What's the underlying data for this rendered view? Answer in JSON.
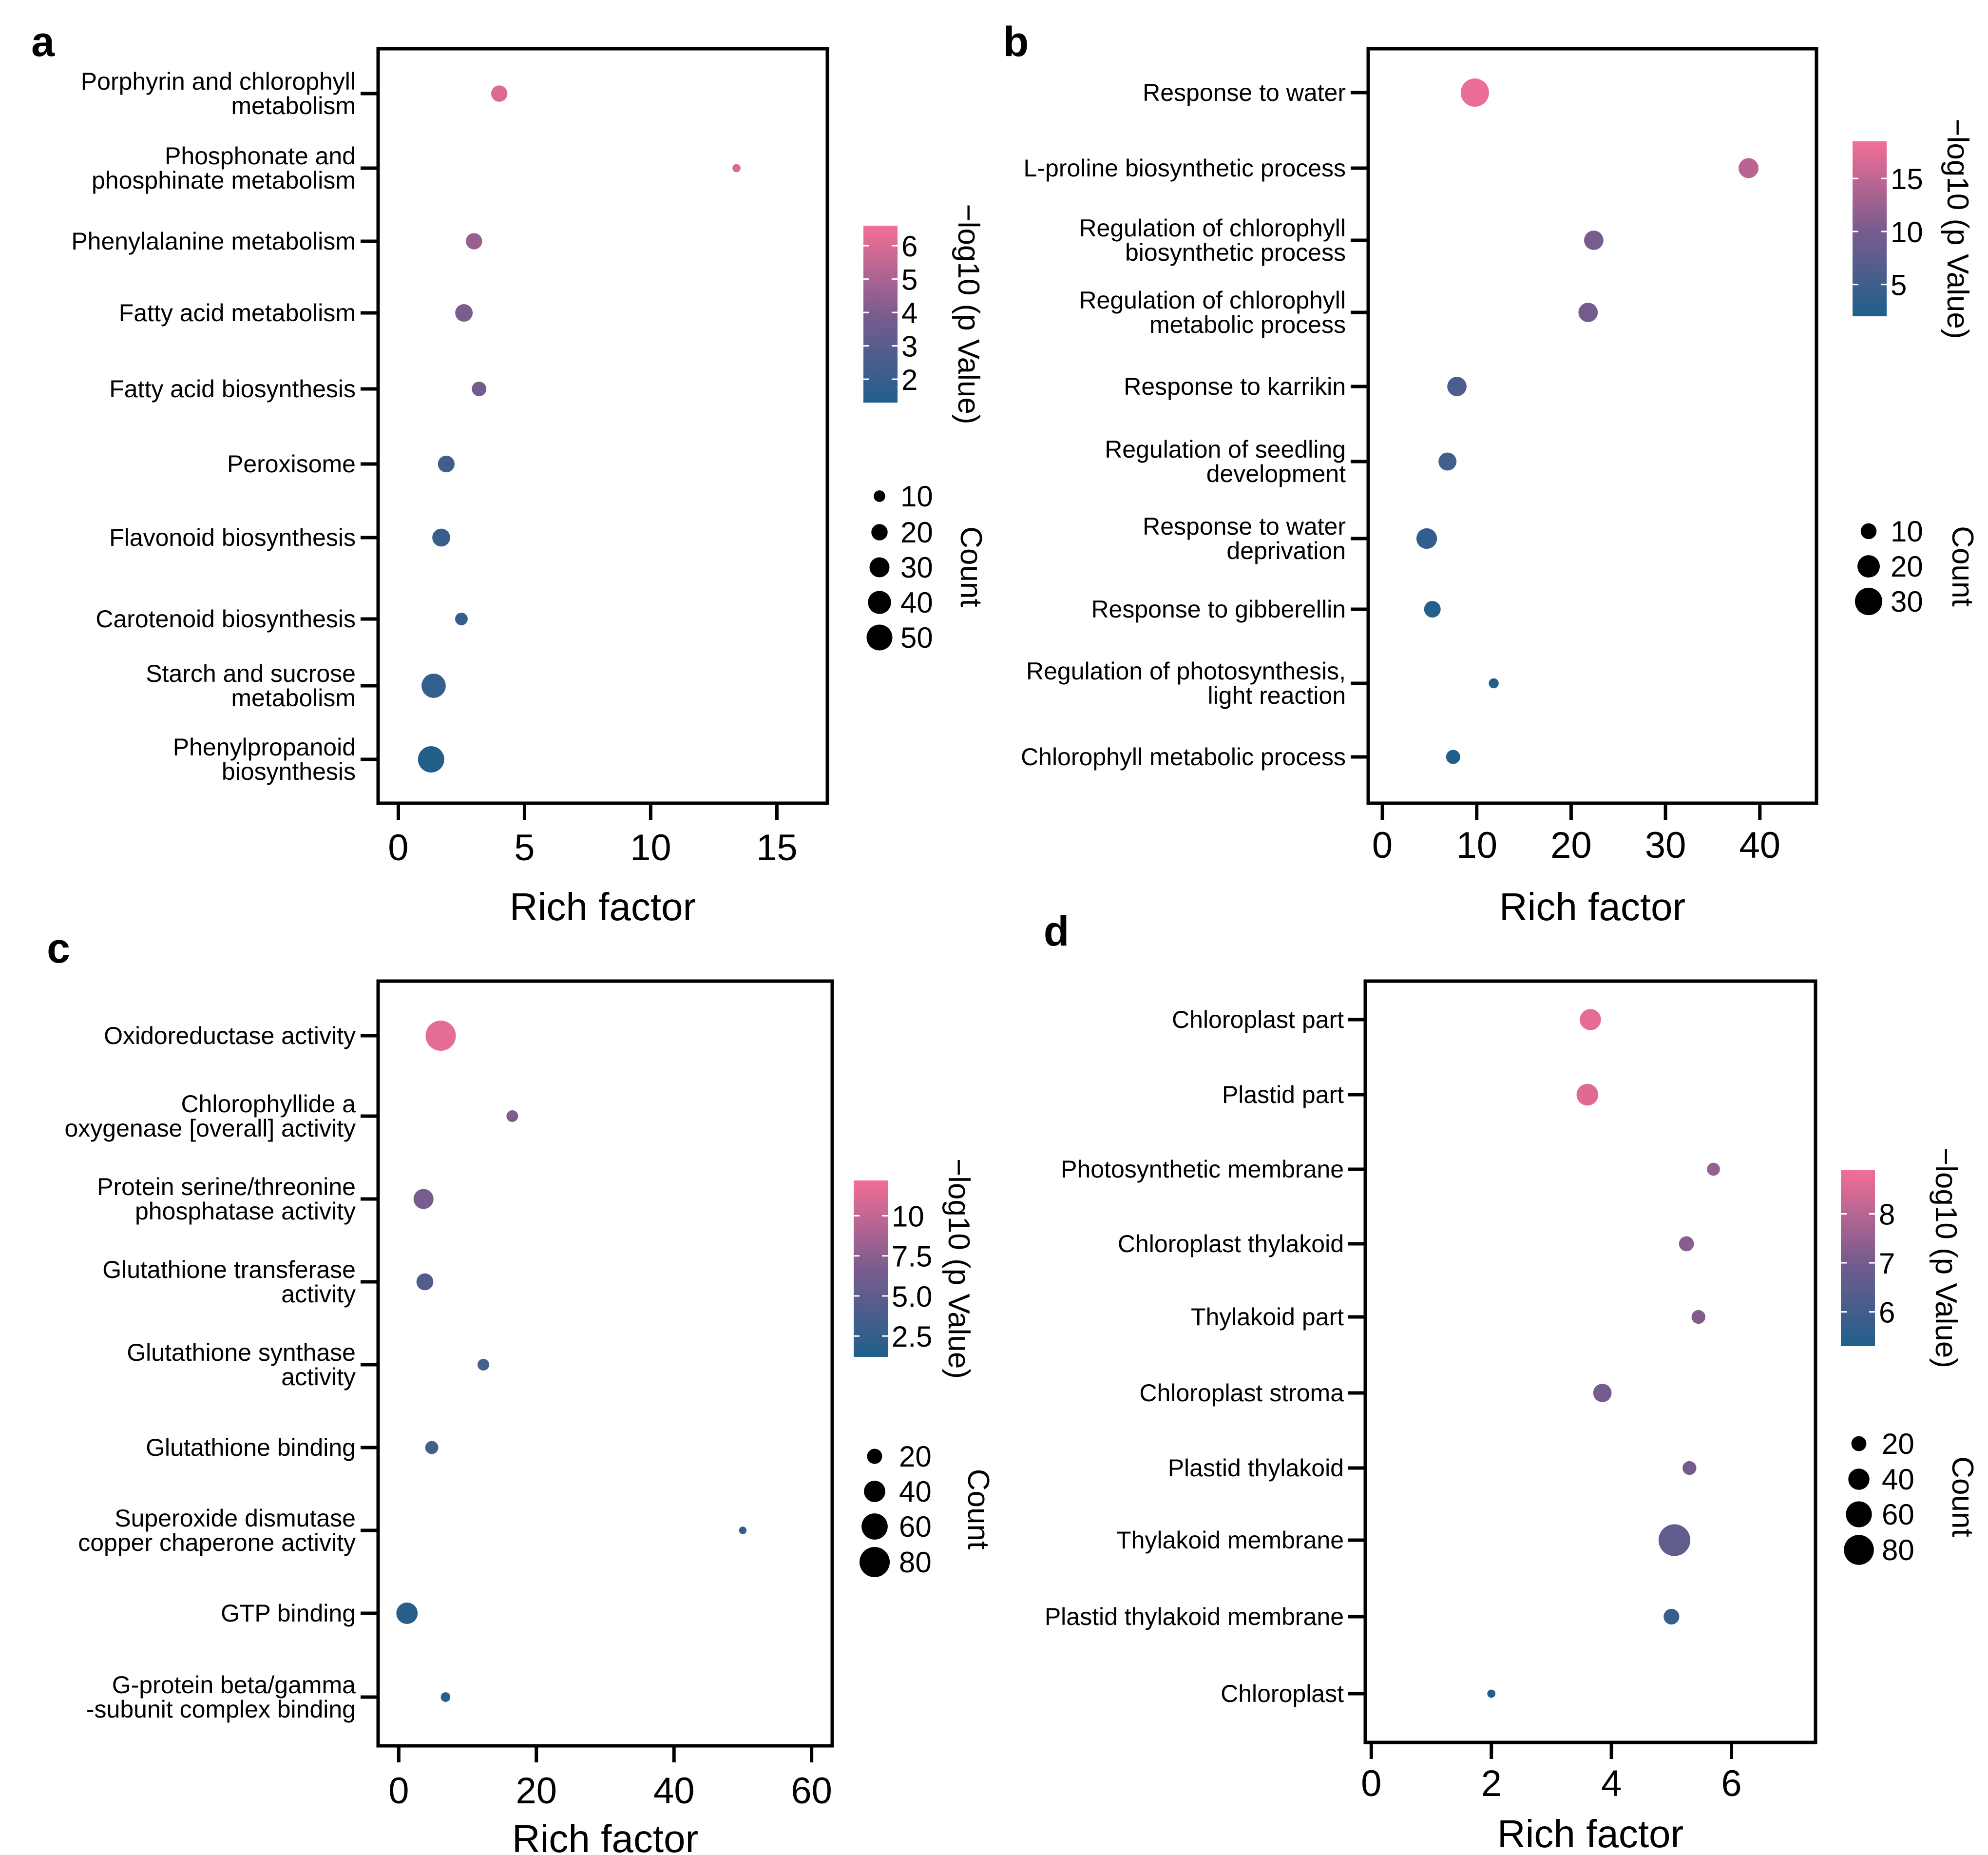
{
  "colors": {
    "low": "#1f5f8b",
    "mid": "#7a5c8e",
    "high": "#f36e96",
    "axis": "#000000"
  },
  "chart_data": [
    {
      "type": "scatter",
      "panel": "a",
      "xlabel": "Rich factor",
      "ylabel": "",
      "xlim": [
        -0.8,
        17
      ],
      "xticks": [
        0,
        5,
        10,
        15
      ],
      "xtick_labels": [
        "0",
        "5",
        "10",
        "15"
      ],
      "categories": [
        "Porphyrin and chlorophyll\nmetabolism",
        "Phosphonate and\nphosphinate metabolism",
        "Phenylalanine metabolism",
        "Fatty acid metabolism",
        "Fatty acid biosynthesis",
        "Peroxisome",
        "Flavonoid biosynthesis",
        "Carotenoid biosynthesis",
        "Starch and sucrose\nmetabolism",
        "Phenylpropanoid\nbiosynthesis"
      ],
      "rich_factor": [
        4.0,
        13.4,
        3.0,
        2.6,
        3.2,
        1.9,
        1.7,
        2.5,
        1.4,
        1.3
      ],
      "count": [
        20,
        5,
        20,
        23,
        16,
        21,
        24,
        12,
        44,
        52
      ],
      "neg_log10_p": [
        6.1,
        6.0,
        4.6,
        4.0,
        3.8,
        2.2,
        2.0,
        1.9,
        1.9,
        1.4
      ],
      "color_legend": {
        "title": "−log10 (p Value)",
        "min": 1.3,
        "max": 6.6,
        "ticks": [
          2,
          3,
          4,
          5,
          6
        ],
        "tick_labels": [
          "2",
          "3",
          "4",
          "5",
          "6"
        ]
      },
      "size_legend": {
        "title": "Count",
        "values": [
          10,
          20,
          30,
          40,
          50
        ],
        "labels": [
          "10",
          "20",
          "30",
          "40",
          "50"
        ],
        "max": 52
      }
    },
    {
      "type": "scatter",
      "panel": "b",
      "xlabel": "Rich factor",
      "ylabel": "",
      "xlim": [
        -1.5,
        46
      ],
      "xticks": [
        0,
        10,
        20,
        30,
        40
      ],
      "xtick_labels": [
        "0",
        "10",
        "20",
        "30",
        "40"
      ],
      "categories": [
        "Response to water",
        "L-proline biosynthetic process",
        "Regulation of chlorophyll\nbiosynthetic process",
        "Regulation of chlorophyll\nmetabolic process",
        "Response to karrikin",
        "Regulation of seedling\ndevelopment",
        "Response to water\ndeprivation",
        "Response to gibberellin",
        "Regulation of photosynthesis,\nlight reaction",
        "Chlorophyll metabolic process"
      ],
      "rich_factor": [
        9.8,
        38.8,
        22.4,
        21.8,
        7.9,
        6.9,
        4.7,
        5.3,
        11.8,
        7.5
      ],
      "count": [
        32,
        16,
        15,
        15,
        15,
        13,
        17,
        11,
        4,
        8
      ],
      "neg_log10_p": [
        18.0,
        14.5,
        10.2,
        9.5,
        6.2,
        5.2,
        3.6,
        2.5,
        2.3,
        2.2
      ],
      "color_legend": {
        "title": "−log10 (p Value)",
        "min": 2.0,
        "max": 18.5,
        "ticks": [
          5,
          10,
          15
        ],
        "tick_labels": [
          "5",
          "10",
          "15"
        ]
      },
      "size_legend": {
        "title": "Count",
        "values": [
          10,
          20,
          30
        ],
        "labels": [
          "10",
          "20",
          "30"
        ],
        "max": 32
      }
    },
    {
      "type": "scatter",
      "panel": "c",
      "xlabel": "Rich factor",
      "ylabel": "",
      "xlim": [
        -3,
        63
      ],
      "xticks": [
        0,
        20,
        40,
        60
      ],
      "xtick_labels": [
        "0",
        "20",
        "40",
        "60"
      ],
      "categories": [
        "Oxidoreductase activity",
        "Chlorophyllide a\noxygenase [overall] activity",
        "Protein serine/threonine\nphosphatase activity",
        "Glutathione transferase\nactivity",
        "Glutathione synthase\nactivity",
        "Glutathione binding",
        "Superoxide dismutase\ncopper chaperone activity",
        "GTP binding",
        "G-protein beta/gamma\n-subunit complex binding"
      ],
      "rich_factor": [
        6.1,
        16.5,
        3.6,
        3.8,
        12.3,
        4.8,
        50.0,
        1.2,
        6.8
      ],
      "count": [
        80,
        12,
        35,
        25,
        12,
        15,
        5,
        40,
        8
      ],
      "neg_log10_p": [
        11.5,
        7.0,
        6.5,
        4.2,
        3.5,
        3.6,
        2.6,
        1.8,
        1.8
      ],
      "color_legend": {
        "title": "−log10 (p Value)",
        "min": 1.2,
        "max": 12.2,
        "ticks": [
          2.5,
          5.0,
          7.5,
          10
        ],
        "tick_labels": [
          "2.5",
          "5.0",
          "7.5",
          "10"
        ]
      },
      "size_legend": {
        "title": "Count",
        "values": [
          20,
          40,
          60,
          80
        ],
        "labels": [
          "20",
          "40",
          "60",
          "80"
        ],
        "max": 85
      }
    },
    {
      "type": "scatter",
      "panel": "d",
      "xlabel": "Rich factor",
      "ylabel": "",
      "xlim": [
        -0.1,
        7.4
      ],
      "xticks": [
        0,
        2,
        4,
        6
      ],
      "xtick_labels": [
        "0",
        "2",
        "4",
        "6"
      ],
      "categories": [
        "Chloroplast part",
        "Plastid part",
        "Photosynthetic membrane",
        "Chloroplast thylakoid",
        "Thylakoid part",
        "Chloroplast stroma",
        "Plastid thylakoid",
        "Thylakoid membrane",
        "Plastid thylakoid membrane",
        "Chloroplast"
      ],
      "rich_factor": [
        3.65,
        3.6,
        5.7,
        5.25,
        5.45,
        3.85,
        5.3,
        5.05,
        5.0,
        2.0
      ],
      "count": [
        40,
        42,
        15,
        20,
        17,
        30,
        17,
        90,
        22,
        6
      ],
      "neg_log10_p": [
        8.7,
        8.6,
        7.5,
        7.3,
        7.2,
        7.0,
        7.0,
        6.6,
        5.8,
        5.4
      ],
      "color_legend": {
        "title": "−log10 (p Value)",
        "min": 5.3,
        "max": 8.9,
        "ticks": [
          6,
          7,
          8
        ],
        "tick_labels": [
          "6",
          "7",
          "8"
        ]
      },
      "size_legend": {
        "title": "Count",
        "values": [
          20,
          40,
          60,
          80
        ],
        "labels": [
          "20",
          "40",
          "60",
          "80"
        ],
        "max": 92
      }
    }
  ]
}
